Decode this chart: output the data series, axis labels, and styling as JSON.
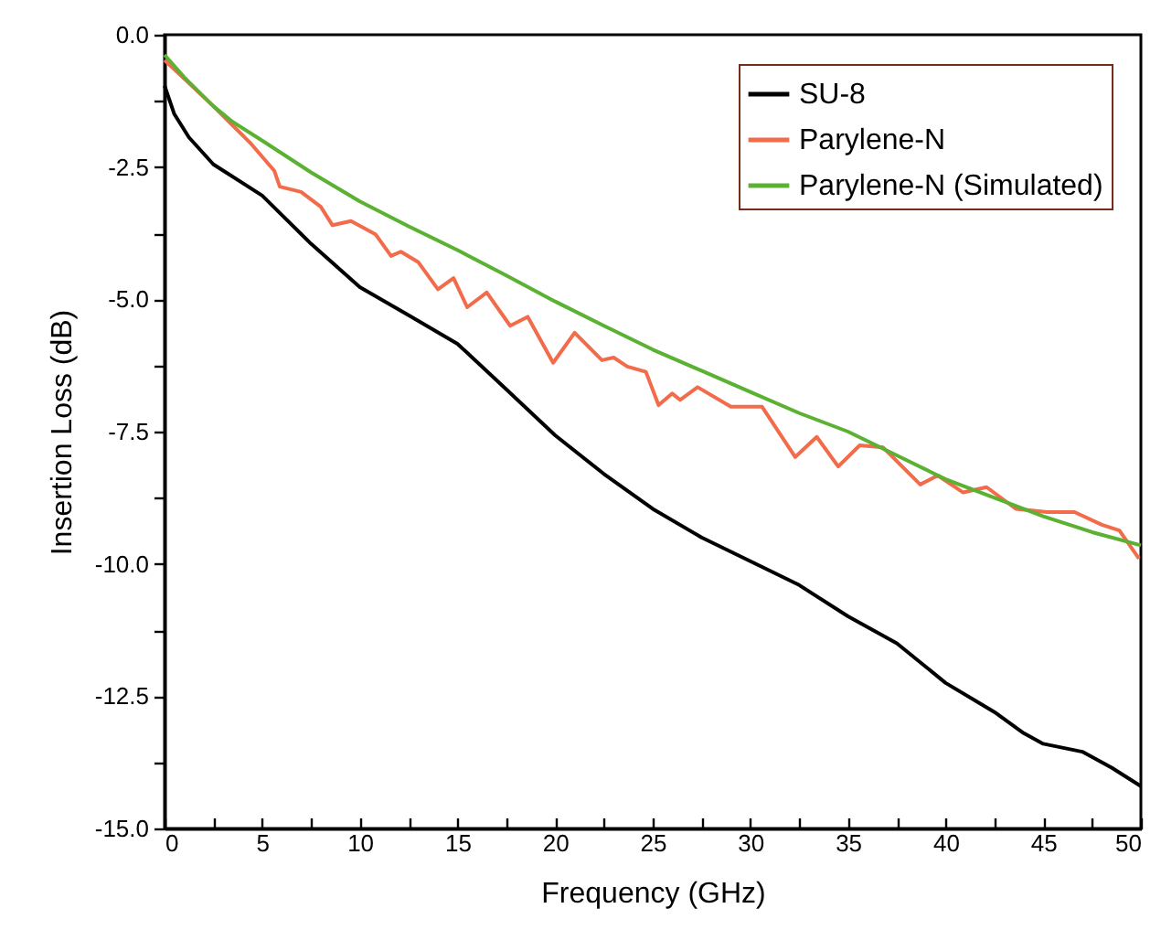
{
  "chart_data": {
    "type": "line",
    "xlabel": "Frequency (GHz)",
    "ylabel": "Insertion Loss (dB)",
    "xlim": [
      0,
      50
    ],
    "ylim": [
      -15,
      0
    ],
    "xticks": [
      0,
      {
        "value": 2.5,
        "label": null
      },
      5,
      {
        "value": 7.5,
        "label": null
      },
      10,
      {
        "value": 12.5,
        "label": null
      },
      15,
      {
        "value": 17.5,
        "label": null
      },
      20,
      {
        "value": 22.5,
        "label": null
      },
      25,
      {
        "value": 27.5,
        "label": null
      },
      30,
      {
        "value": 32.5,
        "label": null
      },
      35,
      {
        "value": 37.5,
        "label": null
      },
      40,
      {
        "value": 42.5,
        "label": null
      },
      45,
      {
        "value": 47.5,
        "label": null
      },
      50
    ],
    "yticks": [
      {
        "value": -15,
        "label": "-15.0"
      },
      {
        "value": -13.75,
        "label": null
      },
      {
        "value": -12.5,
        "label": "-12.5"
      },
      {
        "value": -11.25,
        "label": null
      },
      {
        "value": -10,
        "label": "-10.0"
      },
      {
        "value": -8.75,
        "label": null
      },
      {
        "value": -7.5,
        "label": "-7.5"
      },
      {
        "value": -6.25,
        "label": null
      },
      {
        "value": -5,
        "label": "-5.0"
      },
      {
        "value": -3.75,
        "label": null
      },
      {
        "value": -2.5,
        "label": "-2.5"
      },
      {
        "value": -1.25,
        "label": null
      },
      {
        "value": 0,
        "label": "0.0"
      }
    ],
    "grid": false,
    "legend": "top right",
    "marker": "none",
    "line_style": "solid",
    "series": [
      {
        "name": "SU-8",
        "color": "#000000",
        "x": [
          0,
          0.5,
          1.25,
          2.5,
          5,
          7.5,
          10,
          12.5,
          15,
          17.5,
          20,
          22.5,
          25,
          27.5,
          30,
          32.5,
          35,
          37.5,
          40,
          42.5,
          44,
          45,
          47,
          48.5,
          50
        ],
        "values": [
          -0.96,
          -1.5,
          -1.94,
          -2.45,
          -3.04,
          -3.95,
          -4.77,
          -5.3,
          -5.84,
          -6.7,
          -7.57,
          -8.3,
          -8.96,
          -9.5,
          -9.95,
          -10.4,
          -10.99,
          -11.5,
          -12.25,
          -12.8,
          -13.2,
          -13.4,
          -13.55,
          -13.85,
          -14.2
        ]
      },
      {
        "name": "Parylene-N",
        "color": "#f26b4a",
        "x": [
          0,
          2.5,
          4.38,
          5.62,
          5.9,
          6.99,
          8.0,
          8.6,
          9.55,
          10.8,
          11.6,
          12.1,
          13.0,
          14.0,
          14.8,
          15.5,
          16.5,
          17.7,
          18.6,
          19.9,
          21.0,
          22.4,
          23.0,
          23.7,
          24.65,
          25.3,
          26.0,
          26.4,
          27.3,
          29.0,
          30.6,
          32.3,
          33.4,
          34.5,
          35.6,
          36.8,
          38.7,
          39.6,
          40.9,
          42.1,
          43.6,
          45.2,
          46.6,
          48.0,
          48.9,
          49.9
        ],
        "values": [
          -0.48,
          -1.35,
          -2.04,
          -2.57,
          -2.87,
          -2.97,
          -3.25,
          -3.6,
          -3.52,
          -3.77,
          -4.18,
          -4.1,
          -4.3,
          -4.81,
          -4.6,
          -5.15,
          -4.87,
          -5.5,
          -5.33,
          -6.2,
          -5.63,
          -6.15,
          -6.1,
          -6.27,
          -6.37,
          -7.0,
          -6.78,
          -6.9,
          -6.66,
          -7.03,
          -7.03,
          -7.98,
          -7.6,
          -8.16,
          -7.76,
          -7.8,
          -8.5,
          -8.33,
          -8.65,
          -8.55,
          -8.96,
          -9.02,
          -9.02,
          -9.26,
          -9.37,
          -9.9
        ]
      },
      {
        "name": "Parylene-N (Simulated)",
        "color": "#5ab132",
        "x": [
          0,
          1,
          2.5,
          3.5,
          5,
          7.5,
          10,
          12.5,
          15,
          17.5,
          20,
          22.5,
          25,
          27.5,
          30,
          32.5,
          35,
          37.5,
          40,
          42.5,
          45,
          47.5,
          50
        ],
        "values": [
          -0.38,
          -0.8,
          -1.35,
          -1.65,
          -2.0,
          -2.6,
          -3.15,
          -3.62,
          -4.07,
          -4.55,
          -5.04,
          -5.5,
          -5.95,
          -6.35,
          -6.75,
          -7.15,
          -7.5,
          -7.95,
          -8.4,
          -8.75,
          -9.1,
          -9.4,
          -9.65
        ]
      }
    ]
  }
}
